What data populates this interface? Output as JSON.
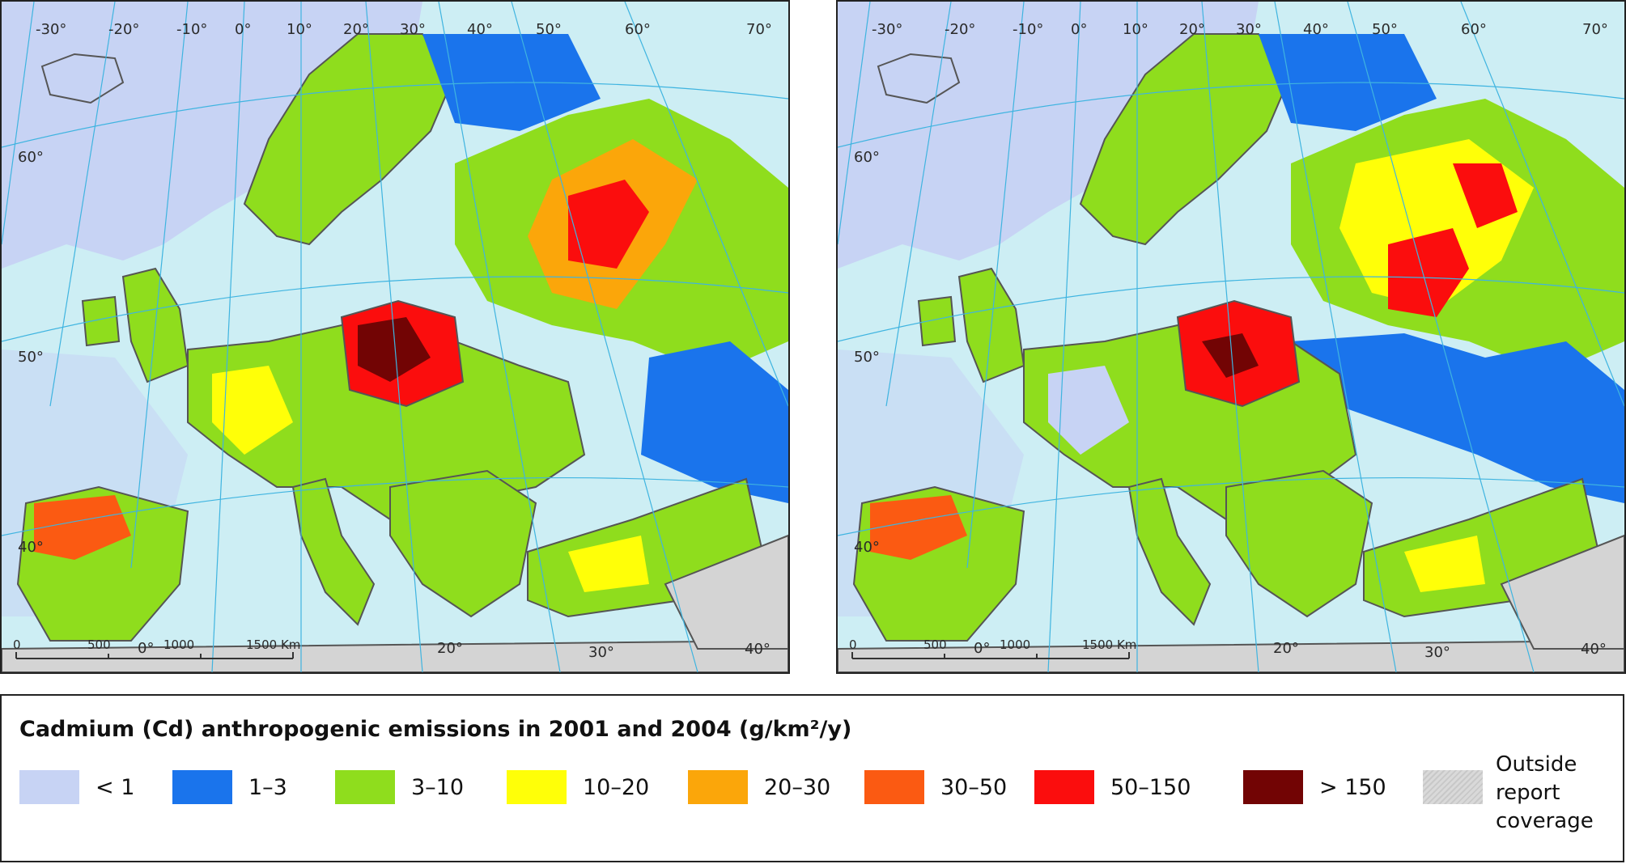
{
  "maps": [
    {
      "id": "2001",
      "lon_labels": [
        "-30°",
        "-20°",
        "-10°",
        "0°",
        "10°",
        "20°",
        "30°",
        "40°",
        "50°",
        "60°",
        "70°"
      ],
      "lat_labels": [
        "60°",
        "50°",
        "40°"
      ],
      "bottom_lon_labels": [
        "0°",
        "20°",
        "30°",
        "40°"
      ],
      "scale_labels": [
        "0",
        "500",
        "1000",
        "1500 Km"
      ]
    },
    {
      "id": "2004",
      "lon_labels": [
        "-30°",
        "-20°",
        "-10°",
        "0°",
        "10°",
        "20°",
        "30°",
        "40°",
        "50°",
        "60°",
        "70°"
      ],
      "lat_labels": [
        "60°",
        "50°",
        "40°"
      ],
      "bottom_lon_labels": [
        "0°",
        "20°",
        "30°",
        "40°"
      ],
      "scale_labels": [
        "0",
        "500",
        "1000",
        "1500 Km"
      ]
    }
  ],
  "legend": {
    "title": "Cadmium (Cd) anthropogenic emissions in 2001 and 2004 (g/km²/y)",
    "items": [
      {
        "label": "< 1",
        "color": "#c7d3f4"
      },
      {
        "label": "1–3",
        "color": "#1a74ec"
      },
      {
        "label": "3–10",
        "color": "#8fdd1d"
      },
      {
        "label": "10–20",
        "color": "#ffff08"
      },
      {
        "label": "20–30",
        "color": "#fba60a"
      },
      {
        "label": "30–50",
        "color": "#fb5a12"
      },
      {
        "label": "50–150",
        "color": "#fb0d0d"
      },
      {
        "label": "> 150",
        "color": "#720404"
      }
    ],
    "outside": {
      "label": "Outside report coverage",
      "lines": [
        "Outside",
        "report",
        "coverage"
      ],
      "color": "#d7d7d7"
    }
  },
  "colors": {
    "sea": "#cdeef4",
    "land_outside": "#d4d4d4",
    "borders": "#555555",
    "graticule": "#3fb4e0"
  }
}
